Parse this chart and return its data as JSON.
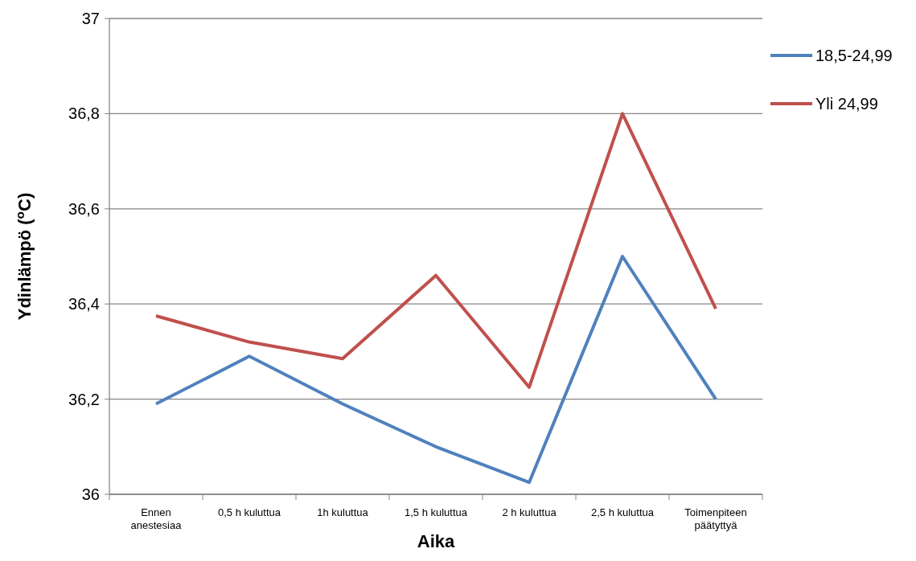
{
  "chart_data": {
    "type": "line",
    "xlabel": "Aika",
    "ylabel": "Ydinlämpö ($^{o}$C)",
    "categories": [
      "Ennen anestesiaa",
      "0,5 h kuluttua",
      "1h kuluttua",
      "1,5 h kuluttua",
      "2 h kuluttua",
      "2,5 h kuluttua",
      "Toimenpiteen päätyttyä"
    ],
    "series": [
      {
        "name": "18,5-24,99",
        "color": "#4f81bd",
        "values": [
          36.19,
          36.29,
          36.19,
          36.1,
          36.025,
          36.5,
          36.2
        ]
      },
      {
        "name": "Yli 24,99",
        "color": "#c0504d",
        "values": [
          36.375,
          36.32,
          36.285,
          36.46,
          36.225,
          36.8,
          36.39
        ]
      }
    ],
    "ylim": [
      36,
      37
    ],
    "yticks": [
      36,
      {
        "value": 36.2,
        "label": "36,2"
      },
      {
        "value": 36.4,
        "label": "36,4"
      },
      {
        "value": 36.6,
        "label": "36,6"
      },
      {
        "value": 36.8,
        "label": "36,8"
      },
      37
    ],
    "grid": "y",
    "legend": "right",
    "marker": "none",
    "line_style": "solid"
  }
}
